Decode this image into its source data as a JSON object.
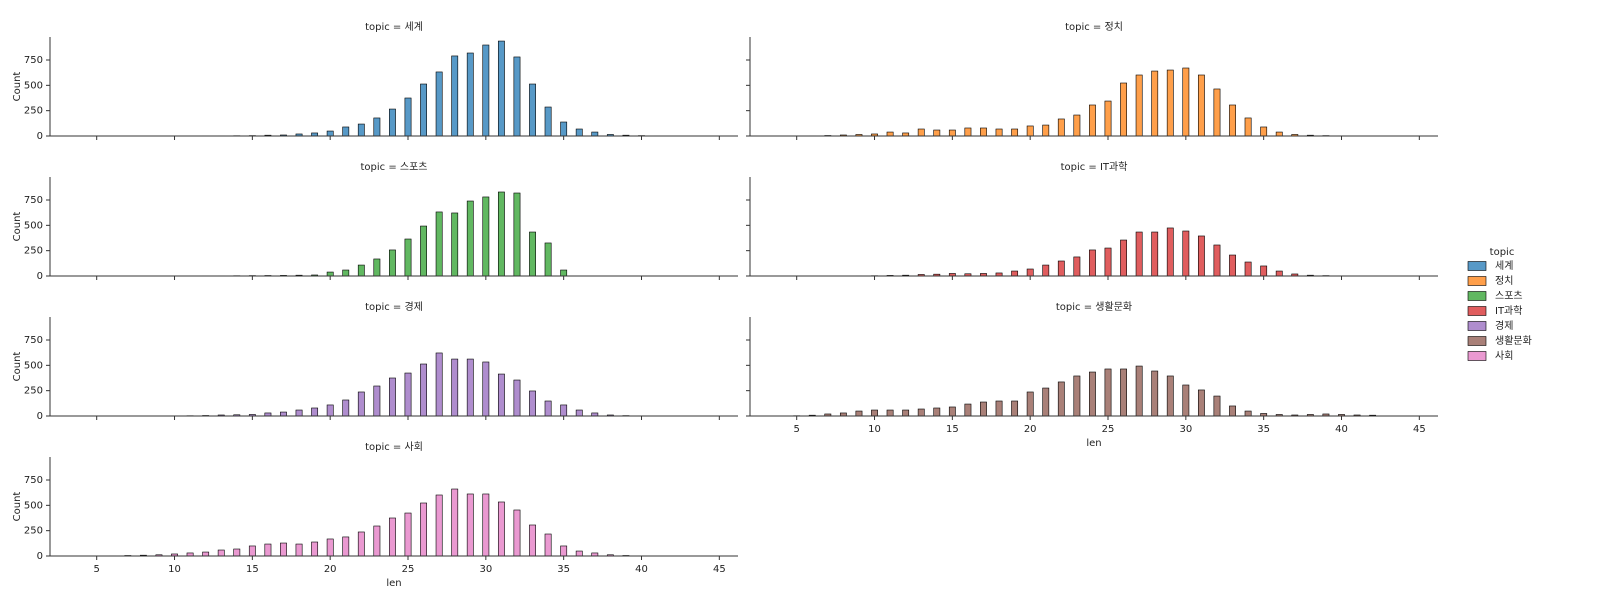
{
  "chart_data": [
    {
      "type": "bar",
      "title": "topic = 세계",
      "ylabel": "Count",
      "x": [
        5,
        6,
        7,
        8,
        9,
        10,
        11,
        12,
        13,
        14,
        15,
        16,
        17,
        18,
        19,
        20,
        21,
        22,
        23,
        24,
        25,
        26,
        27,
        28,
        29,
        30,
        31,
        32,
        33,
        34,
        35,
        36,
        37,
        38,
        39,
        40,
        41,
        42,
        43,
        44
      ],
      "series": [
        {
          "name": "세계",
          "color": "#1f77b4",
          "values": [
            0,
            0,
            0,
            0,
            1,
            1,
            1,
            2,
            2,
            3,
            4,
            8,
            10,
            20,
            30,
            49,
            89,
            118,
            178,
            266,
            375,
            513,
            632,
            790,
            819,
            898,
            937,
            780,
            513,
            286,
            138,
            69,
            39,
            15,
            8,
            4,
            2,
            1,
            1,
            0
          ]
        }
      ],
      "xlim": [
        2,
        46.2
      ],
      "xticks": [
        5,
        10,
        15,
        20,
        25,
        30,
        35,
        40,
        45
      ],
      "ylim": [
        0,
        977
      ],
      "yticks": [
        0,
        250,
        500,
        750
      ]
    },
    {
      "type": "bar",
      "title": "topic = 정치",
      "x": [
        5,
        6,
        7,
        8,
        9,
        10,
        11,
        12,
        13,
        14,
        15,
        16,
        17,
        18,
        19,
        20,
        21,
        22,
        23,
        24,
        25,
        26,
        27,
        28,
        29,
        30,
        31,
        32,
        33,
        34,
        35,
        36,
        37,
        38,
        39,
        40,
        41,
        42,
        43,
        44
      ],
      "series": [
        {
          "name": "정치",
          "color": "#ff7f0e",
          "values": [
            1,
            2,
            5,
            10,
            15,
            20,
            39,
            30,
            69,
            59,
            59,
            79,
            79,
            69,
            69,
            99,
            108,
            168,
            207,
            306,
            345,
            523,
            602,
            641,
            651,
            671,
            602,
            464,
            306,
            178,
            89,
            39,
            15,
            8,
            4,
            2,
            1,
            0,
            0,
            0
          ]
        }
      ],
      "xlim": [
        2,
        46.2
      ],
      "xticks": [
        5,
        10,
        15,
        20,
        25,
        30,
        35,
        40,
        45
      ],
      "ylim": [
        0,
        977
      ],
      "yticks": [
        0,
        250,
        500,
        750
      ]
    },
    {
      "type": "bar",
      "title": "topic = 스포츠",
      "ylabel": "Count",
      "x": [
        5,
        6,
        7,
        8,
        9,
        10,
        11,
        12,
        13,
        14,
        15,
        16,
        17,
        18,
        19,
        20,
        21,
        22,
        23,
        24,
        25,
        26,
        27,
        28,
        29,
        30,
        31,
        32,
        33,
        34,
        35,
        36,
        37,
        38,
        39,
        40,
        41,
        42,
        43,
        44
      ],
      "series": [
        {
          "name": "스포츠",
          "color": "#2ca02c",
          "values": [
            0,
            0,
            0,
            0,
            1,
            1,
            1,
            2,
            2,
            3,
            4,
            5,
            6,
            8,
            10,
            39,
            59,
            108,
            168,
            257,
            365,
            493,
            632,
            622,
            740,
            780,
            829,
            819,
            434,
            326,
            59,
            0,
            0,
            0,
            0,
            0,
            0,
            0,
            0,
            0
          ]
        }
      ],
      "xlim": [
        2,
        46.2
      ],
      "xticks": [
        5,
        10,
        15,
        20,
        25,
        30,
        35,
        40,
        45
      ],
      "ylim": [
        0,
        977
      ],
      "yticks": [
        0,
        250,
        500,
        750
      ]
    },
    {
      "type": "bar",
      "title": "topic = IT과학",
      "x": [
        5,
        6,
        7,
        8,
        9,
        10,
        11,
        12,
        13,
        14,
        15,
        16,
        17,
        18,
        19,
        20,
        21,
        22,
        23,
        24,
        25,
        26,
        27,
        28,
        29,
        30,
        31,
        32,
        33,
        34,
        35,
        36,
        37,
        38,
        39,
        40,
        41,
        42,
        43,
        44
      ],
      "series": [
        {
          "name": "IT과학",
          "color": "#d62728",
          "values": [
            0,
            0,
            0,
            1,
            2,
            3,
            6,
            8,
            15,
            18,
            25,
            22,
            25,
            30,
            49,
            69,
            108,
            148,
            188,
            257,
            276,
            355,
            434,
            434,
            474,
            444,
            395,
            306,
            207,
            138,
            99,
            49,
            20,
            8,
            4,
            2,
            1,
            0,
            0,
            0
          ]
        }
      ],
      "xlim": [
        2,
        46.2
      ],
      "xticks": [
        5,
        10,
        15,
        20,
        25,
        30,
        35,
        40,
        45
      ],
      "ylim": [
        0,
        977
      ],
      "yticks": [
        0,
        250,
        500,
        750
      ]
    },
    {
      "type": "bar",
      "title": "topic = 경제",
      "ylabel": "Count",
      "x": [
        5,
        6,
        7,
        8,
        9,
        10,
        11,
        12,
        13,
        14,
        15,
        16,
        17,
        18,
        19,
        20,
        21,
        22,
        23,
        24,
        25,
        26,
        27,
        28,
        29,
        30,
        31,
        32,
        33,
        34,
        35,
        36,
        37,
        38,
        39,
        40,
        41,
        42,
        43,
        44
      ],
      "series": [
        {
          "name": "경제",
          "color": "#9467bd",
          "values": [
            0,
            0,
            0,
            0,
            1,
            2,
            3,
            5,
            10,
            12,
            15,
            30,
            39,
            59,
            79,
            109,
            158,
            237,
            296,
            375,
            424,
            513,
            622,
            562,
            562,
            533,
            414,
            355,
            247,
            148,
            109,
            59,
            30,
            10,
            4,
            2,
            1,
            0,
            0,
            0
          ]
        }
      ],
      "xlim": [
        2,
        46.2
      ],
      "xticks": [
        5,
        10,
        15,
        20,
        25,
        30,
        35,
        40,
        45
      ],
      "ylim": [
        0,
        977
      ],
      "yticks": [
        0,
        250,
        500,
        750
      ]
    },
    {
      "type": "bar",
      "title": "topic = 생활문화",
      "xlabel": "len",
      "x": [
        5,
        6,
        7,
        8,
        9,
        10,
        11,
        12,
        13,
        14,
        15,
        16,
        17,
        18,
        19,
        20,
        21,
        22,
        23,
        24,
        25,
        26,
        27,
        28,
        29,
        30,
        31,
        32,
        33,
        34,
        35,
        36,
        37,
        38,
        39,
        40,
        41,
        42,
        43,
        44
      ],
      "series": [
        {
          "name": "생활문화",
          "color": "#8c564b",
          "values": [
            3,
            8,
            20,
            30,
            49,
            59,
            59,
            59,
            69,
            79,
            89,
            118,
            138,
            148,
            148,
            237,
            276,
            336,
            395,
            434,
            464,
            464,
            493,
            444,
            395,
            306,
            257,
            197,
            99,
            49,
            25,
            15,
            10,
            15,
            20,
            15,
            10,
            8,
            0,
            0
          ]
        }
      ],
      "xlim": [
        2,
        46.2
      ],
      "xticks": [
        5,
        10,
        15,
        20,
        25,
        30,
        35,
        40,
        45
      ],
      "ylim": [
        0,
        977
      ],
      "yticks": [
        0,
        250,
        500,
        750
      ]
    },
    {
      "type": "bar",
      "title": "topic = 사회",
      "ylabel": "Count",
      "xlabel": "len",
      "x": [
        5,
        6,
        7,
        8,
        9,
        10,
        11,
        12,
        13,
        14,
        15,
        16,
        17,
        18,
        19,
        20,
        21,
        22,
        23,
        24,
        25,
        26,
        27,
        28,
        29,
        30,
        31,
        32,
        33,
        34,
        35,
        36,
        37,
        38,
        39,
        40,
        41,
        42,
        43,
        44
      ],
      "series": [
        {
          "name": "사회",
          "color": "#e377c2",
          "values": [
            1,
            2,
            5,
            8,
            12,
            20,
            30,
            39,
            59,
            69,
            99,
            118,
            128,
            118,
            138,
            168,
            188,
            237,
            296,
            375,
            424,
            523,
            602,
            661,
            612,
            612,
            533,
            454,
            306,
            217,
            99,
            49,
            30,
            12,
            5,
            2,
            1,
            0,
            0,
            0
          ]
        }
      ],
      "xlim": [
        2,
        46.2
      ],
      "xticks": [
        5,
        10,
        15,
        20,
        25,
        30,
        35,
        40,
        45
      ],
      "ylim": [
        0,
        977
      ],
      "yticks": [
        0,
        250,
        500,
        750
      ]
    }
  ],
  "legend_title": "topic"
}
